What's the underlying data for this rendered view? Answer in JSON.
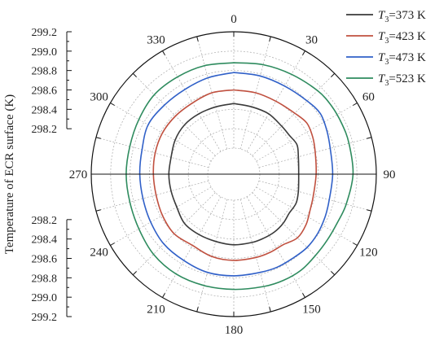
{
  "chart_data": {
    "type": "polar-line",
    "ylabel": "Temperature of ECR surface (K)",
    "radial_range": [
      298.0,
      299.2
    ],
    "radial_ticks": [
      "298.2",
      "298.4",
      "298.6",
      "298.8",
      "299.0",
      "299.2"
    ],
    "angle_ticks": [
      "0",
      "30",
      "60",
      "90",
      "120",
      "150",
      "180",
      "210",
      "240",
      "270",
      "300",
      "330"
    ],
    "angle_values": [
      0,
      30,
      60,
      90,
      120,
      150,
      180,
      210,
      240,
      270,
      300,
      330
    ],
    "legend_position": "top-right",
    "series": [
      {
        "legend_main": "T",
        "legend_sub": "3",
        "legend_rest": "=373 K",
        "color": "#3a3a3a",
        "theta": [
          0,
          15,
          30,
          45,
          55,
          65,
          75,
          90,
          105,
          115,
          125,
          135,
          145,
          155,
          165,
          180,
          195,
          210,
          225,
          240,
          255,
          270,
          285,
          300,
          315,
          330,
          345,
          360
        ],
        "r": [
          298.46,
          298.45,
          298.45,
          298.43,
          298.43,
          298.45,
          298.42,
          298.4,
          298.42,
          298.44,
          298.43,
          298.45,
          298.46,
          298.46,
          298.46,
          298.46,
          298.45,
          298.45,
          298.45,
          298.41,
          298.4,
          298.4,
          298.4,
          298.43,
          298.45,
          298.45,
          298.45,
          298.46
        ]
      },
      {
        "legend_main": "T",
        "legend_sub": "3",
        "legend_rest": "=423 K",
        "color": "#c0503f",
        "theta": [
          0,
          15,
          30,
          45,
          55,
          65,
          75,
          90,
          105,
          115,
          125,
          135,
          145,
          155,
          165,
          180,
          195,
          210,
          225,
          240,
          255,
          270,
          285,
          300,
          315,
          330,
          345,
          360
        ],
        "r": [
          298.6,
          298.6,
          298.6,
          298.62,
          298.65,
          298.63,
          298.6,
          298.58,
          298.58,
          298.6,
          298.64,
          298.66,
          298.62,
          298.62,
          298.62,
          298.62,
          298.61,
          298.58,
          298.6,
          298.58,
          298.56,
          298.56,
          298.57,
          298.58,
          298.58,
          298.58,
          298.6,
          298.6
        ]
      },
      {
        "legend_main": "T",
        "legend_sub": "3",
        "legend_rest": "=473 K",
        "color": "#3060c8",
        "theta": [
          0,
          15,
          30,
          45,
          55,
          65,
          75,
          90,
          105,
          115,
          125,
          135,
          145,
          155,
          165,
          180,
          195,
          210,
          225,
          240,
          255,
          270,
          285,
          300,
          315,
          330,
          345,
          360
        ],
        "r": [
          298.78,
          298.78,
          298.78,
          298.8,
          298.82,
          298.79,
          298.76,
          298.75,
          298.75,
          298.77,
          298.79,
          298.8,
          298.79,
          298.79,
          298.78,
          298.78,
          298.78,
          298.76,
          298.75,
          298.72,
          298.7,
          298.7,
          298.71,
          298.75,
          298.74,
          298.74,
          298.76,
          298.78
        ]
      },
      {
        "legend_main": "T",
        "legend_sub": "3",
        "legend_rest": "=523 K",
        "color": "#2e8b5e",
        "theta": [
          0,
          15,
          30,
          45,
          55,
          65,
          75,
          90,
          105,
          115,
          125,
          135,
          145,
          155,
          165,
          180,
          195,
          210,
          225,
          240,
          255,
          270,
          285,
          300,
          315,
          330,
          345,
          360
        ],
        "r": [
          298.88,
          298.9,
          298.92,
          298.95,
          298.96,
          298.96,
          298.96,
          298.96,
          298.93,
          298.91,
          298.91,
          298.92,
          298.94,
          298.94,
          298.93,
          298.92,
          298.92,
          298.92,
          298.9,
          298.86,
          298.84,
          298.84,
          298.84,
          298.86,
          298.89,
          298.89,
          298.89,
          298.88
        ]
      }
    ]
  }
}
